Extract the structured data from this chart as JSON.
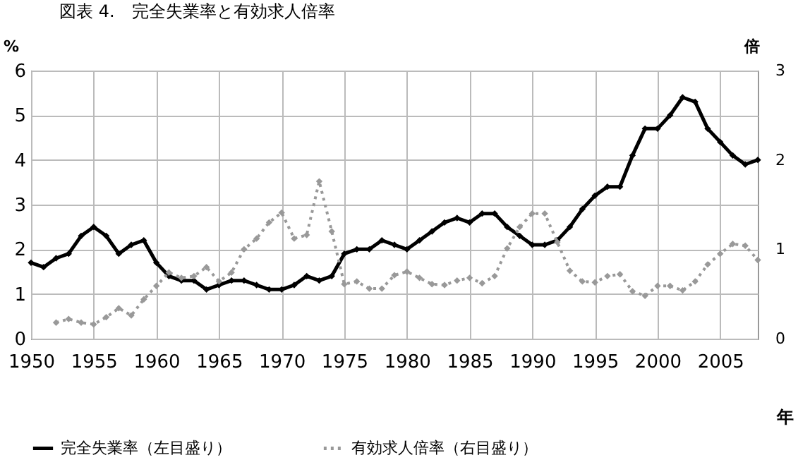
{
  "chart_data": {
    "type": "line",
    "title": "図表 4.　完全失業率と有効求人倍率",
    "ylabel": "%",
    "y2label": "倍",
    "xlabel": "年",
    "xlim": [
      1950,
      2008
    ],
    "xticks": [
      1950,
      1955,
      1960,
      1965,
      1970,
      1975,
      1980,
      1985,
      1990,
      1995,
      2000,
      2005
    ],
    "ylim": [
      0,
      6
    ],
    "yticks": [
      0,
      1,
      2,
      3,
      4,
      5,
      6
    ],
    "y2lim": [
      0,
      3
    ],
    "y2ticks": [
      0,
      1,
      2,
      3
    ],
    "grid": true,
    "legend": "bottom",
    "marker": "diamond",
    "series": [
      {
        "name": "完全失業率（左目盛り）",
        "color": "#000000",
        "line_style": "solid",
        "axis": "y",
        "x": [
          1950,
          1951,
          1952,
          1953,
          1954,
          1955,
          1956,
          1957,
          1958,
          1959,
          1960,
          1961,
          1962,
          1963,
          1964,
          1965,
          1966,
          1967,
          1968,
          1969,
          1970,
          1971,
          1972,
          1973,
          1974,
          1975,
          1976,
          1977,
          1978,
          1979,
          1980,
          1981,
          1982,
          1983,
          1984,
          1985,
          1986,
          1987,
          1988,
          1989,
          1990,
          1991,
          1992,
          1993,
          1994,
          1995,
          1996,
          1997,
          1998,
          1999,
          2000,
          2001,
          2002,
          2003,
          2004,
          2005,
          2006,
          2007,
          2008
        ],
        "values": [
          1.7,
          1.6,
          1.8,
          1.9,
          2.3,
          2.5,
          2.3,
          1.9,
          2.1,
          2.2,
          1.7,
          1.4,
          1.3,
          1.3,
          1.1,
          1.2,
          1.3,
          1.3,
          1.2,
          1.1,
          1.1,
          1.2,
          1.4,
          1.3,
          1.4,
          1.9,
          2.0,
          2.0,
          2.2,
          2.1,
          2.0,
          2.2,
          2.4,
          2.6,
          2.7,
          2.6,
          2.8,
          2.8,
          2.5,
          2.3,
          2.1,
          2.1,
          2.2,
          2.5,
          2.9,
          3.2,
          3.4,
          3.4,
          4.1,
          4.7,
          4.7,
          5.0,
          5.4,
          5.3,
          4.7,
          4.4,
          4.1,
          3.9,
          4.0
        ]
      },
      {
        "name": "有効求人倍率（右目盛り）",
        "color": "#999999",
        "line_style": "dotted",
        "axis": "y2",
        "x": [
          1952,
          1953,
          1954,
          1955,
          1956,
          1957,
          1958,
          1959,
          1960,
          1961,
          1962,
          1963,
          1964,
          1965,
          1966,
          1967,
          1968,
          1969,
          1970,
          1971,
          1972,
          1973,
          1974,
          1975,
          1976,
          1977,
          1978,
          1979,
          1980,
          1981,
          1982,
          1983,
          1984,
          1985,
          1986,
          1987,
          1988,
          1989,
          1990,
          1991,
          1992,
          1993,
          1994,
          1995,
          1996,
          1997,
          1998,
          1999,
          2000,
          2001,
          2002,
          2003,
          2004,
          2005,
          2006,
          2007,
          2008
        ],
        "values": [
          0.18,
          0.22,
          0.18,
          0.16,
          0.24,
          0.34,
          0.26,
          0.44,
          0.59,
          0.74,
          0.68,
          0.7,
          0.8,
          0.64,
          0.74,
          1.0,
          1.12,
          1.3,
          1.41,
          1.12,
          1.16,
          1.76,
          1.2,
          0.61,
          0.64,
          0.56,
          0.56,
          0.71,
          0.75,
          0.68,
          0.61,
          0.6,
          0.65,
          0.68,
          0.62,
          0.7,
          1.01,
          1.25,
          1.4,
          1.4,
          1.08,
          0.76,
          0.64,
          0.63,
          0.7,
          0.72,
          0.53,
          0.48,
          0.59,
          0.59,
          0.54,
          0.64,
          0.83,
          0.95,
          1.06,
          1.04,
          0.88
        ]
      }
    ]
  }
}
